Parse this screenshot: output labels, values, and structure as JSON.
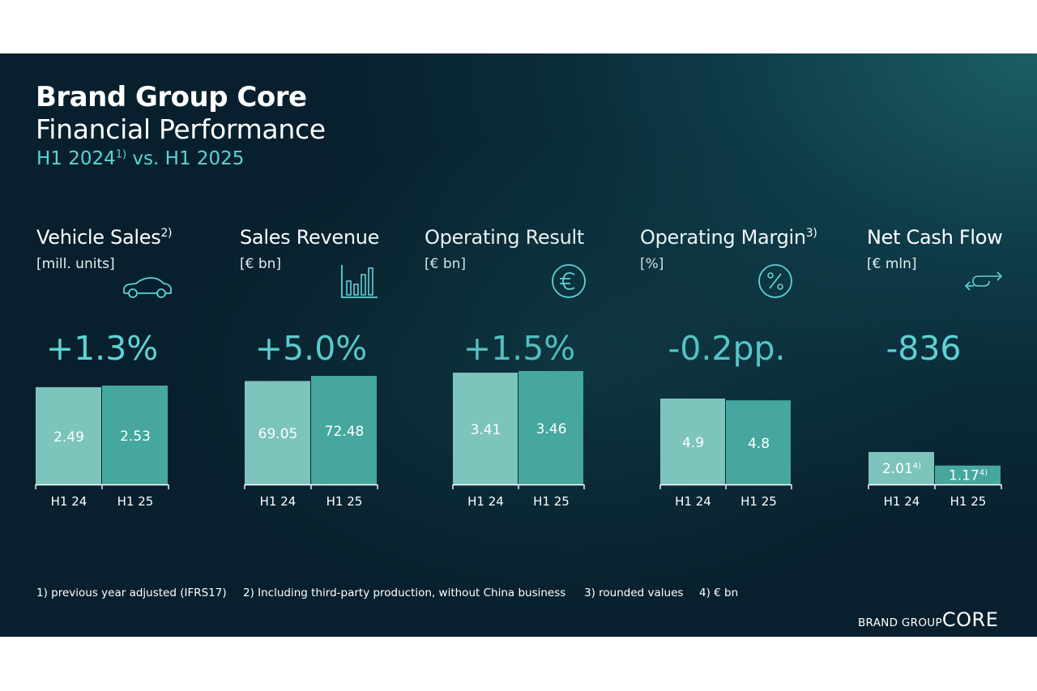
{
  "header": {
    "title": "Brand Group Core",
    "subtitle": "Financial Performance",
    "period_prefix": "H1 2024",
    "period_sup": "1)",
    "period_suffix": " vs. H1 2025"
  },
  "chart_data": [
    {
      "type": "bar",
      "title": "Vehicle Sales",
      "title_sup": "2)",
      "ylabel": "[mill. units]",
      "icon": "car-icon",
      "delta": "+1.3%",
      "categories": [
        "H1 24",
        "H1 25"
      ],
      "values": [
        2.49,
        2.53
      ],
      "labels": [
        "2.49",
        "2.53"
      ],
      "label_sup": [
        "",
        ""
      ]
    },
    {
      "type": "bar",
      "title": "Sales Revenue",
      "title_sup": "",
      "ylabel": "[€ bn]",
      "icon": "bar-chart-icon",
      "delta": "+5.0%",
      "categories": [
        "H1 24",
        "H1 25"
      ],
      "values": [
        69.05,
        72.48
      ],
      "labels": [
        "69.05",
        "72.48"
      ],
      "label_sup": [
        "",
        ""
      ]
    },
    {
      "type": "bar",
      "title": "Operating Result",
      "title_sup": "",
      "ylabel": "[€ bn]",
      "icon": "euro-icon",
      "delta": "+1.5%",
      "categories": [
        "H1 24",
        "H1 25"
      ],
      "values": [
        3.41,
        3.46
      ],
      "labels": [
        "3.41",
        "3.46"
      ],
      "label_sup": [
        "",
        ""
      ]
    },
    {
      "type": "bar",
      "title": "Operating Margin",
      "title_sup": "3)",
      "ylabel": "[%]",
      "icon": "percent-icon",
      "delta": "-0.2pp.",
      "categories": [
        "H1 24",
        "H1 25"
      ],
      "values": [
        4.9,
        4.8
      ],
      "labels": [
        "4.9",
        "4.8"
      ],
      "label_sup": [
        "",
        ""
      ]
    },
    {
      "type": "bar",
      "title": "Net Cash Flow",
      "title_sup": "",
      "ylabel": "[€ mln]",
      "icon": "cash-flow-arrows-icon",
      "delta": "-836",
      "categories": [
        "H1 24",
        "H1 25"
      ],
      "values": [
        2.01,
        1.17
      ],
      "labels": [
        "2.01",
        "1.17"
      ],
      "label_sup": [
        "4)",
        "4)"
      ]
    }
  ],
  "footnotes": [
    "1) previous year adjusted (IFRS17)",
    "2) Including third-party production, without China business",
    "3) rounded values",
    "4) € bn"
  ],
  "brand": {
    "prefix": "BRAND GROUP",
    "name": "CORE"
  },
  "colors": {
    "bar_prior": "#7cc4bc",
    "bar_current": "#45a79e",
    "accent": "#5fd3d6"
  }
}
